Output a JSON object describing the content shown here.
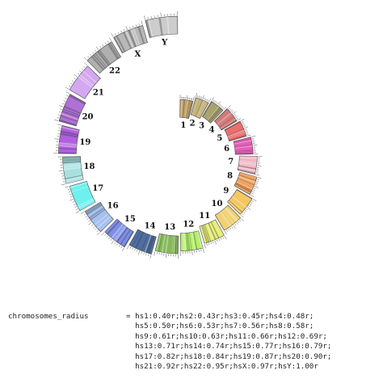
{
  "chromosomes": [
    {
      "label": "1",
      "radius": 0.4,
      "color": "#c6a66b"
    },
    {
      "label": "2",
      "radius": 0.43,
      "color": "#c3b27a"
    },
    {
      "label": "3",
      "radius": 0.45,
      "color": "#a9a370"
    },
    {
      "label": "4",
      "radius": 0.48,
      "color": "#d27a7a"
    },
    {
      "label": "5",
      "radius": 0.5,
      "color": "#ea6f6f"
    },
    {
      "label": "6",
      "radius": 0.53,
      "color": "#e35fb8"
    },
    {
      "label": "7",
      "radius": 0.56,
      "color": "#f0b7c4"
    },
    {
      "label": "8",
      "radius": 0.58,
      "color": "#f0a460"
    },
    {
      "label": "9",
      "radius": 0.61,
      "color": "#f3c660"
    },
    {
      "label": "10",
      "radius": 0.63,
      "color": "#f0d070"
    },
    {
      "label": "11",
      "radius": 0.66,
      "color": "#e8ee78"
    },
    {
      "label": "12",
      "radius": 0.69,
      "color": "#b6f06a"
    },
    {
      "label": "13",
      "radius": 0.71,
      "color": "#86b85a"
    },
    {
      "label": "14",
      "radius": 0.74,
      "color": "#4e6ea0"
    },
    {
      "label": "15",
      "radius": 0.77,
      "color": "#7e8ee6"
    },
    {
      "label": "16",
      "radius": 0.79,
      "color": "#a6c2f0"
    },
    {
      "label": "17",
      "radius": 0.82,
      "color": "#6ef0ee"
    },
    {
      "label": "18",
      "radius": 0.84,
      "color": "#a8e0e0"
    },
    {
      "label": "19",
      "radius": 0.87,
      "color": "#b060e0"
    },
    {
      "label": "20",
      "radius": 0.9,
      "color": "#b070d8"
    },
    {
      "label": "21",
      "radius": 0.92,
      "color": "#d4a8f0"
    },
    {
      "label": "22",
      "radius": 0.95,
      "color": "#b0b0b0"
    },
    {
      "label": "X",
      "radius": 0.97,
      "color": "#b8b8b8"
    },
    {
      "label": "Y",
      "radius": 1.0,
      "color": "#cccccc"
    }
  ],
  "param": {
    "name": "chromosomes_radius",
    "value_lines": [
      "= hs1:0.40r;hs2:0.43r;hs3:0.45r;hs4:0.48r;",
      "  hs5:0.50r;hs6:0.53r;hs7:0.56r;hs8:0.58r;",
      "  hs9:0.61r;hs10:0.63r;hs11:0.66r;hs12:0.69r;",
      "  hs13:0.71r;hs14:0.74r;hs15:0.77r;hs16:0.79r;",
      "  hs17:0.82r;hs18:0.84r;hs19:0.87r;hs20:0.90r;",
      "  hs21:0.92r;hs22:0.95r;hsX:0.97r;hsY:1.00r"
    ]
  }
}
